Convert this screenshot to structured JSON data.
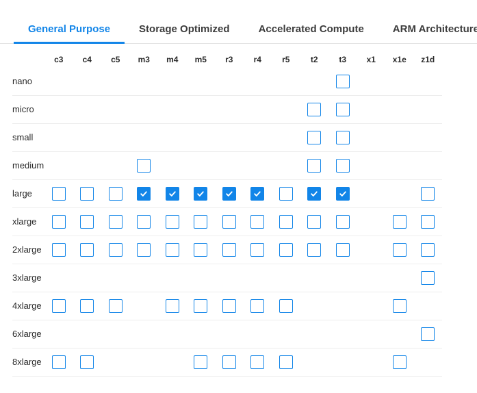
{
  "colors": {
    "accent": "#1285e8"
  },
  "tab_bar": {
    "tabs": [
      {
        "label": "General Purpose",
        "active": true
      },
      {
        "label": "Storage Optimized",
        "active": false
      },
      {
        "label": "Accelerated Compute",
        "active": false
      },
      {
        "label": "ARM Architecture",
        "active": false
      }
    ]
  },
  "matrix": {
    "columns": [
      "c3",
      "c4",
      "c5",
      "m3",
      "m4",
      "m5",
      "r3",
      "r4",
      "r5",
      "t2",
      "t3",
      "x1",
      "x1e",
      "z1d"
    ],
    "rows": [
      {
        "label": "nano",
        "cells": {
          "t3": false
        }
      },
      {
        "label": "micro",
        "cells": {
          "t2": false,
          "t3": false
        }
      },
      {
        "label": "small",
        "cells": {
          "t2": false,
          "t3": false
        }
      },
      {
        "label": "medium",
        "cells": {
          "m3": false,
          "t2": false,
          "t3": false
        }
      },
      {
        "label": "large",
        "cells": {
          "c3": false,
          "c4": false,
          "c5": false,
          "m3": true,
          "m4": true,
          "m5": true,
          "r3": true,
          "r4": true,
          "r5": false,
          "t2": true,
          "t3": true,
          "z1d": false
        }
      },
      {
        "label": "xlarge",
        "cells": {
          "c3": false,
          "c4": false,
          "c5": false,
          "m3": false,
          "m4": false,
          "m5": false,
          "r3": false,
          "r4": false,
          "r5": false,
          "t2": false,
          "t3": false,
          "x1e": false,
          "z1d": false
        }
      },
      {
        "label": "2xlarge",
        "cells": {
          "c3": false,
          "c4": false,
          "c5": false,
          "m3": false,
          "m4": false,
          "m5": false,
          "r3": false,
          "r4": false,
          "r5": false,
          "t2": false,
          "t3": false,
          "x1e": false,
          "z1d": false
        }
      },
      {
        "label": "3xlarge",
        "cells": {
          "z1d": false
        }
      },
      {
        "label": "4xlarge",
        "cells": {
          "c3": false,
          "c4": false,
          "c5": false,
          "m4": false,
          "m5": false,
          "r3": false,
          "r4": false,
          "r5": false,
          "x1e": false
        }
      },
      {
        "label": "6xlarge",
        "cells": {
          "z1d": false
        }
      },
      {
        "label": "8xlarge",
        "cells": {
          "c3": false,
          "c4": false,
          "m5": false,
          "r3": false,
          "r4": false,
          "r5": false,
          "x1e": false
        }
      }
    ]
  }
}
